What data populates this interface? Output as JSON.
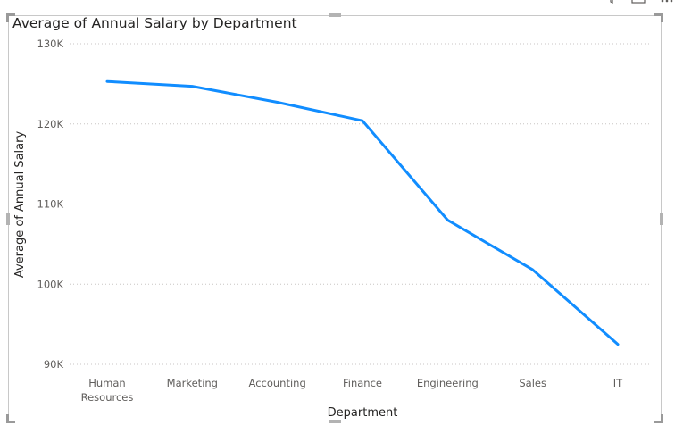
{
  "chart_data": {
    "type": "line",
    "title": "Average of Annual Salary by Department",
    "xlabel": "Department",
    "ylabel": "Average of Annual Salary",
    "categories": [
      "Human Resources",
      "Marketing",
      "Accounting",
      "Finance",
      "Engineering",
      "Sales",
      "IT"
    ],
    "category_labels": [
      [
        "Human",
        "Resources"
      ],
      [
        "Marketing"
      ],
      [
        "Accounting"
      ],
      [
        "Finance"
      ],
      [
        "Engineering"
      ],
      [
        "Sales"
      ],
      [
        "IT"
      ]
    ],
    "series": [
      {
        "values": [
          125300,
          124700,
          122700,
          120400,
          108000,
          101800,
          92500
        ],
        "color": "#118DFF"
      }
    ],
    "ylim": [
      90000,
      130000
    ],
    "yticks": [
      90000,
      100000,
      110000,
      120000,
      130000
    ],
    "ytick_labels": [
      "90K",
      "100K",
      "110K",
      "120K",
      "130K"
    ],
    "grid": true,
    "legend": "none"
  },
  "header_icons": [
    "filter-icon",
    "focus-mode-icon",
    "more-options-icon"
  ]
}
